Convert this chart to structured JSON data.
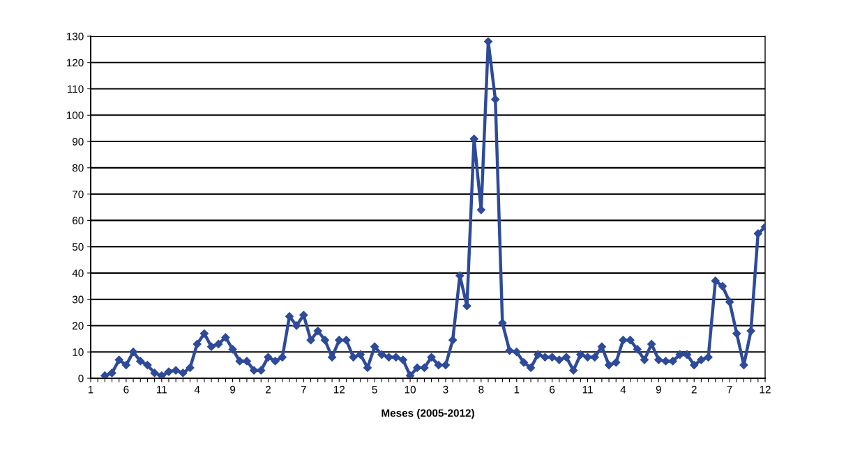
{
  "chart_data": {
    "type": "line",
    "xlabel": "Meses (2005-2012)",
    "categories": [
      "1",
      null,
      null,
      null,
      null,
      "6",
      null,
      null,
      null,
      null,
      "11",
      null,
      null,
      null,
      null,
      "4",
      null,
      null,
      null,
      null,
      "9",
      null,
      null,
      null,
      null,
      "2",
      null,
      null,
      null,
      null,
      "7",
      null,
      null,
      null,
      null,
      "12",
      null,
      null,
      null,
      null,
      "5",
      null,
      null,
      null,
      null,
      "10",
      null,
      null,
      null,
      null,
      "3",
      null,
      null,
      null,
      null,
      "8",
      null,
      null,
      null,
      null,
      "1",
      null,
      null,
      null,
      null,
      "6",
      null,
      null,
      null,
      null,
      "11",
      null,
      null,
      null,
      null,
      "4",
      null,
      null,
      null,
      null,
      "9",
      null,
      null,
      null,
      null,
      "2",
      null,
      null,
      null,
      null,
      "7",
      null,
      null,
      null,
      null,
      "12"
    ],
    "series": [
      {
        "color": "#2e4a9a",
        "values": [
          null,
          null,
          1,
          2,
          7,
          5,
          10,
          6.5,
          5,
          2,
          1,
          2.5,
          3,
          2,
          4,
          13,
          17,
          12,
          13,
          15.5,
          11,
          6.5,
          6.5,
          3,
          3,
          8,
          6.5,
          8,
          23.5,
          20,
          24,
          14.5,
          18,
          14.5,
          8,
          14.5,
          14.5,
          8,
          9,
          4,
          12,
          9,
          8,
          8,
          7,
          1,
          4,
          4,
          8,
          5,
          5,
          14.5,
          39,
          27.5,
          91,
          64,
          128,
          106,
          21,
          10.5,
          10,
          6,
          4,
          9,
          8,
          8,
          7,
          8,
          3,
          9,
          8,
          8,
          12,
          5,
          6,
          14.5,
          14.5,
          11,
          7,
          13,
          7,
          6.5,
          6.5,
          9,
          9,
          5,
          7,
          8,
          37,
          35,
          29,
          17,
          5,
          18,
          55,
          57.5
        ]
      }
    ],
    "ylim": [
      0,
      130
    ],
    "yticks": [
      0,
      10,
      20,
      30,
      40,
      50,
      60,
      70,
      80,
      90,
      100,
      110,
      120,
      130
    ],
    "grid": "y",
    "legend": false,
    "marker": "diamond",
    "line_style": "solid"
  }
}
